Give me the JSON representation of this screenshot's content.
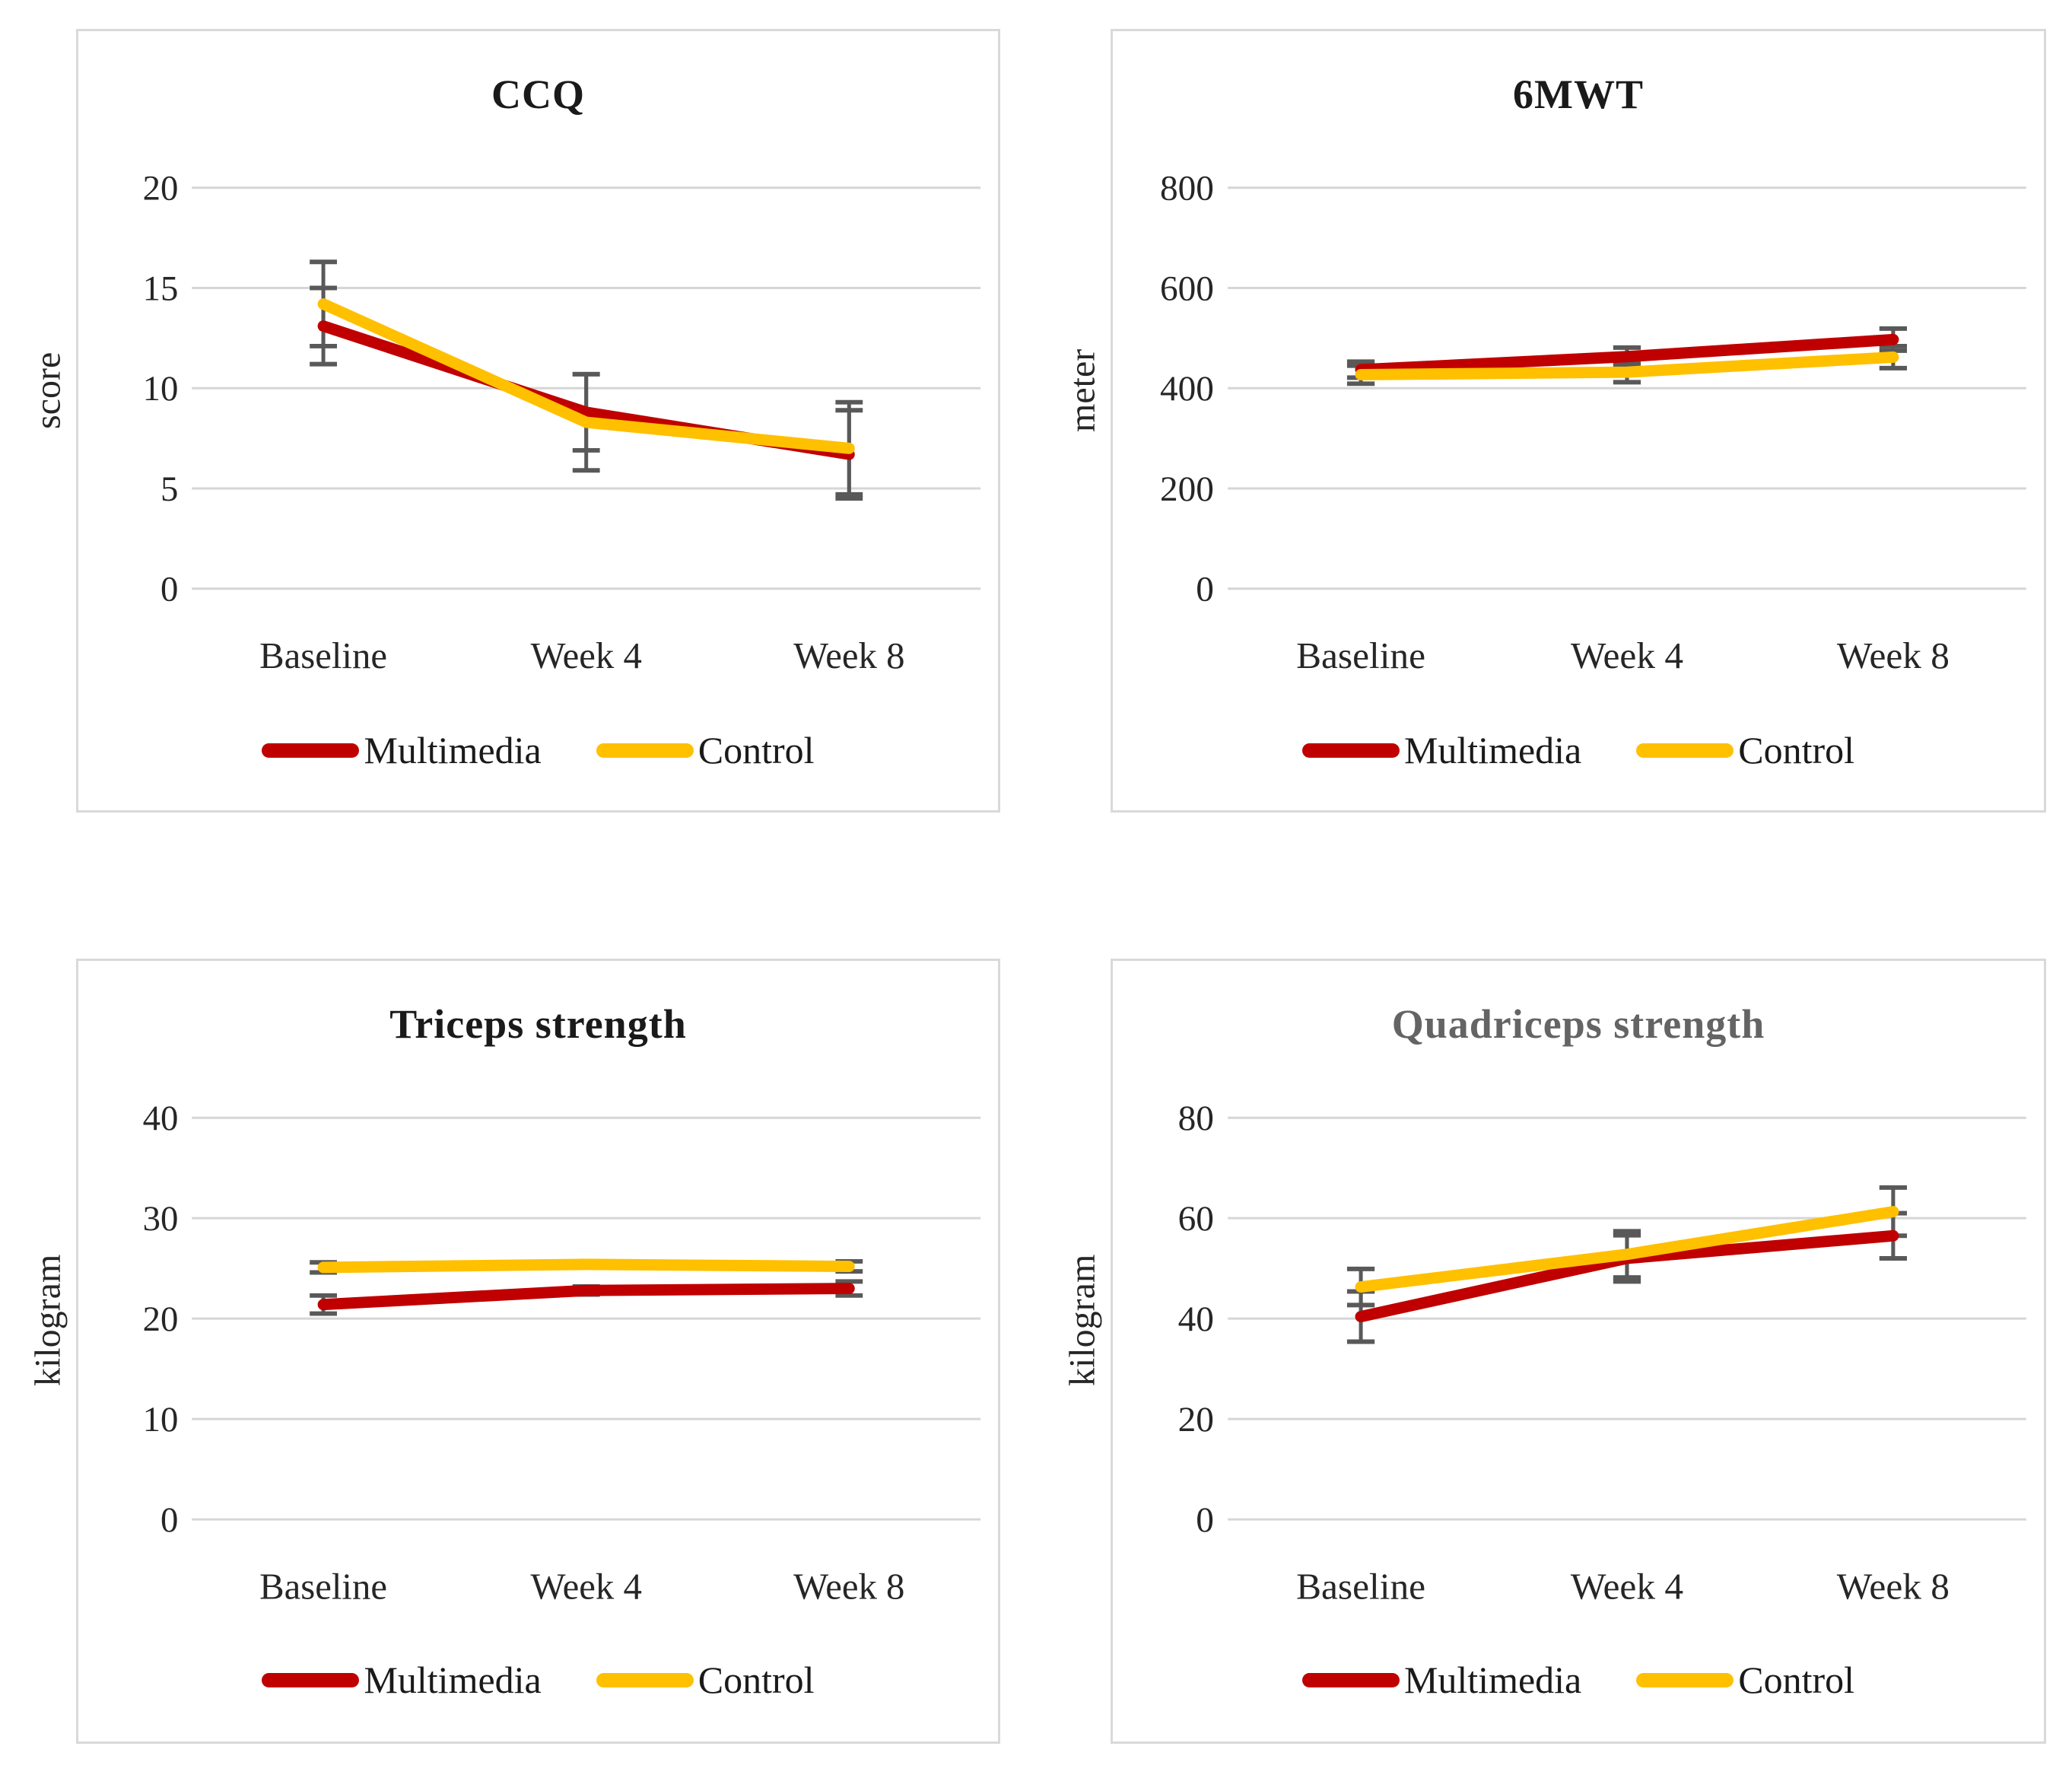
{
  "figure": {
    "background": "#ffffff"
  },
  "colors": {
    "multimedia": "#c00000",
    "control": "#ffc000",
    "error_bar": "#595959",
    "gridline": "#d6d6d6",
    "panel_border": "#d9d9d9",
    "text": "#262626"
  },
  "chart_data": [
    {
      "type": "line",
      "title": "CCQ",
      "title_color": "#1a1a1a",
      "ylabel": "score",
      "categories": [
        "Baseline",
        "Week 4",
        "Week 8"
      ],
      "yticks": [
        0,
        5,
        10,
        15,
        20
      ],
      "ylim": [
        0,
        20
      ],
      "grid": true,
      "legend_position": "bottom",
      "series": [
        {
          "name": "Multimedia",
          "color": "#c00000",
          "values": [
            13.1,
            8.8,
            6.7
          ],
          "error": [
            1.9,
            1.9,
            2.2
          ]
        },
        {
          "name": "Control",
          "color": "#ffc000",
          "values": [
            14.2,
            8.3,
            7.0
          ],
          "error": [
            2.1,
            2.4,
            2.3
          ]
        }
      ]
    },
    {
      "type": "line",
      "title": "6MWT",
      "title_color": "#1a1a1a",
      "ylabel": "meter",
      "categories": [
        "Baseline",
        "Week 4",
        "Week 8"
      ],
      "yticks": [
        0,
        200,
        400,
        600,
        800
      ],
      "ylim": [
        0,
        800
      ],
      "grid": true,
      "legend_position": "bottom",
      "series": [
        {
          "name": "Multimedia",
          "color": "#c00000",
          "values": [
            437,
            463,
            497
          ],
          "error": [
            16,
            18,
            22
          ]
        },
        {
          "name": "Control",
          "color": "#ffc000",
          "values": [
            427,
            432,
            462
          ],
          "error": [
            18,
            20,
            22
          ]
        }
      ]
    },
    {
      "type": "line",
      "title": "Triceps strength",
      "title_color": "#1a1a1a",
      "ylabel": "kilogram",
      "categories": [
        "Baseline",
        "Week 4",
        "Week 8"
      ],
      "yticks": [
        0,
        10,
        20,
        30,
        40
      ],
      "ylim": [
        0,
        40
      ],
      "grid": true,
      "legend_position": "bottom",
      "series": [
        {
          "name": "Multimedia",
          "color": "#c00000",
          "values": [
            21.4,
            22.8,
            23.0
          ],
          "error": [
            0.9,
            0.4,
            0.7
          ]
        },
        {
          "name": "Control",
          "color": "#ffc000",
          "values": [
            25.1,
            25.4,
            25.2
          ],
          "error": [
            0.5,
            0.3,
            0.5
          ]
        }
      ]
    },
    {
      "type": "line",
      "title": "Quadriceps strength",
      "title_color": "#646464",
      "ylabel": "kilogram",
      "categories": [
        "Baseline",
        "Week 4",
        "Week 8"
      ],
      "yticks": [
        0,
        20,
        40,
        60,
        80
      ],
      "ylim": [
        0,
        80
      ],
      "grid": true,
      "legend_position": "bottom",
      "series": [
        {
          "name": "Multimedia",
          "color": "#c00000",
          "values": [
            40.4,
            52.0,
            56.5
          ],
          "error": [
            5.0,
            4.6,
            4.5
          ]
        },
        {
          "name": "Control",
          "color": "#ffc000",
          "values": [
            46.3,
            52.8,
            61.3
          ],
          "error": [
            3.6,
            4.6,
            4.8
          ]
        }
      ]
    }
  ]
}
